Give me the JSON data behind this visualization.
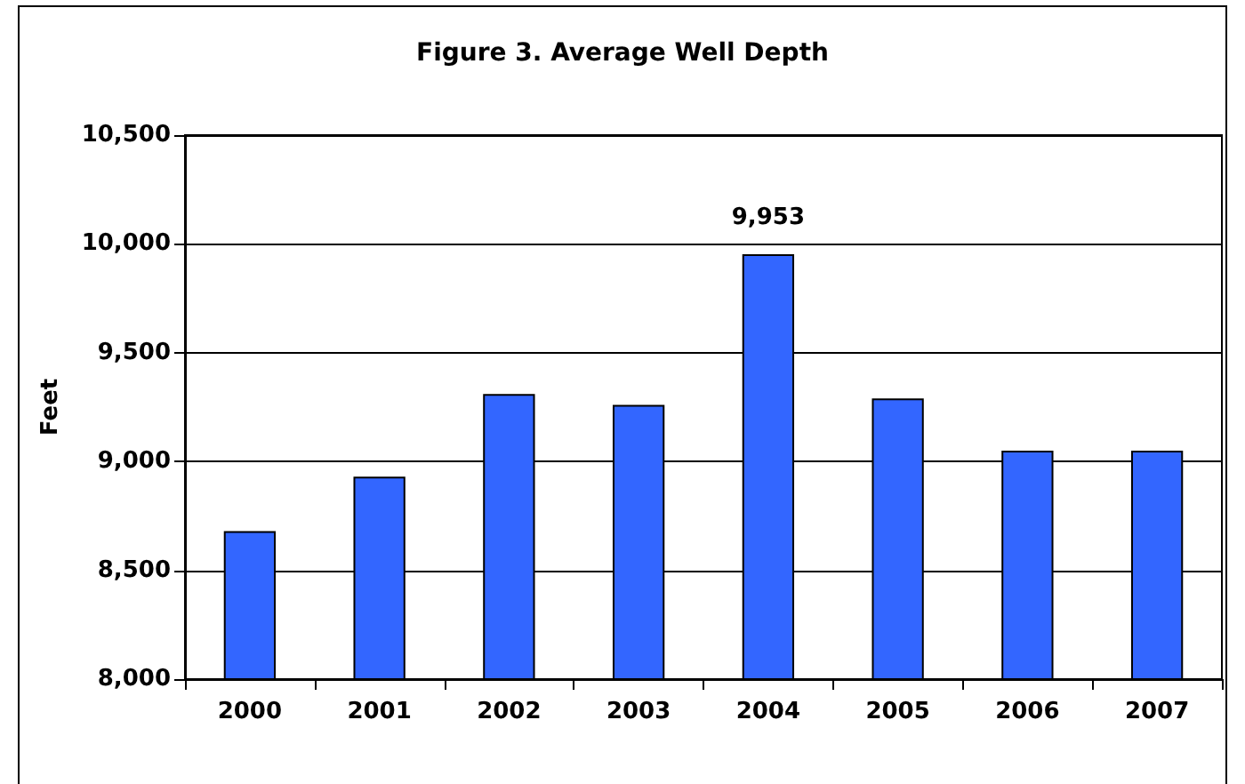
{
  "chart_data": {
    "type": "bar",
    "title": "Figure 3. Average Well Depth",
    "ylabel": "Feet",
    "categories": [
      "2000",
      "2001",
      "2002",
      "2003",
      "2004",
      "2005",
      "2006",
      "2007"
    ],
    "values": [
      8680,
      8930,
      9310,
      9260,
      9953,
      9290,
      9050,
      9050
    ],
    "value_labels": [
      null,
      null,
      null,
      null,
      "9,953",
      null,
      null,
      null
    ],
    "color": "#3366ff",
    "ylim": [
      8000,
      10500
    ],
    "yticks": [
      {
        "value": 8000,
        "label": "8,000"
      },
      {
        "value": 8500,
        "label": "8,500"
      },
      {
        "value": 9000,
        "label": "9,000"
      },
      {
        "value": 9500,
        "label": "9,500"
      },
      {
        "value": 10000,
        "label": "10,000"
      },
      {
        "value": 10500,
        "label": "10,500"
      }
    ],
    "grid": "y"
  }
}
